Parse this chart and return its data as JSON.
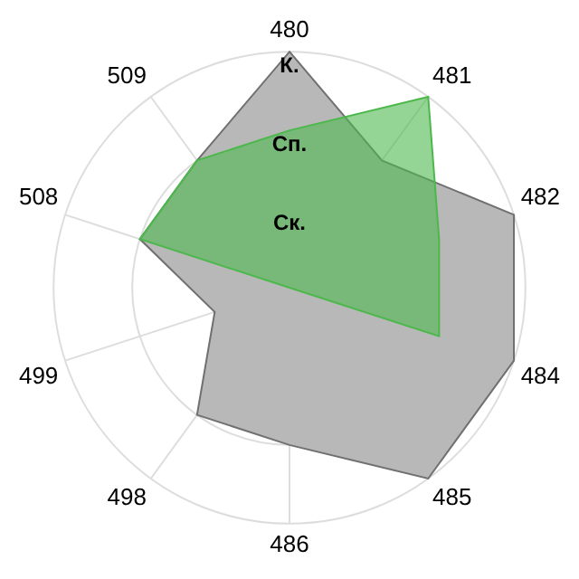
{
  "chart_data": {
    "type": "radar",
    "categories": [
      "480",
      "481",
      "482",
      "484",
      "485",
      "486",
      "498",
      "499",
      "508",
      "509"
    ],
    "series": [
      {
        "color": "#b8b8b8",
        "values": [
          3,
          2,
          3,
          3,
          3,
          2,
          2,
          1,
          2,
          2
        ]
      },
      {
        "color": "#4cb84c",
        "values": [
          2,
          3,
          2,
          2,
          0,
          0,
          0,
          0,
          2,
          2
        ]
      }
    ],
    "ylim": [
      0,
      3
    ],
    "yticks": [
      {
        "value": 1,
        "label": "Ск."
      },
      {
        "value": 2,
        "label": "Сп."
      },
      {
        "value": 3,
        "label": "К."
      }
    ],
    "grid": true,
    "legend": false
  }
}
